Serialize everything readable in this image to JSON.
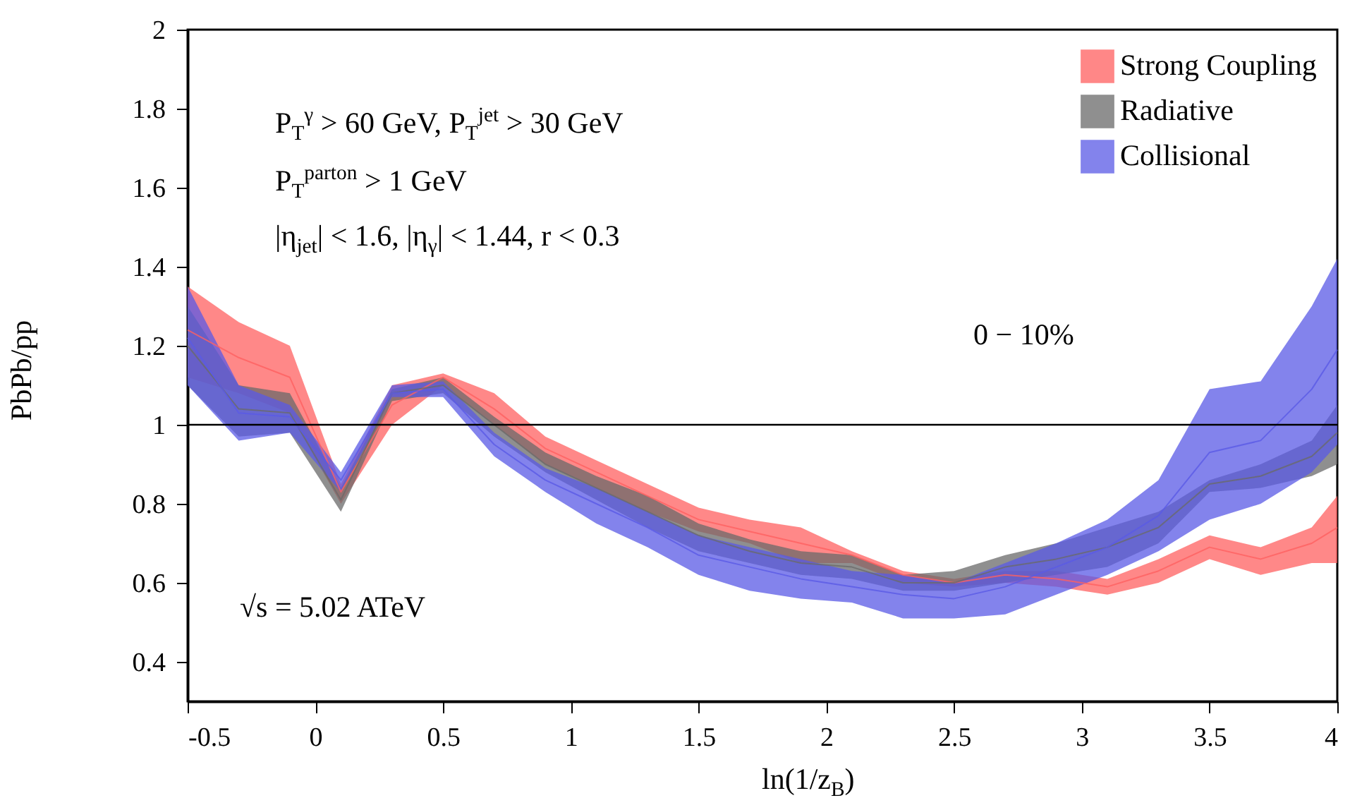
{
  "chart_data": {
    "type": "line",
    "xlabel": "ln(1/z$_{B}$)",
    "ylabel": "PbPb/pp",
    "x": [
      -0.5,
      -0.3,
      -0.1,
      0.1,
      0.3,
      0.5,
      0.7,
      0.9,
      1.1,
      1.3,
      1.5,
      1.7,
      1.9,
      2.1,
      2.3,
      2.5,
      2.7,
      2.9,
      3.1,
      3.3,
      3.5,
      3.7,
      3.9,
      4.0
    ],
    "series": [
      {
        "name": "Strong Coupling",
        "color": "#ff6060",
        "values": [
          1.24,
          1.17,
          1.12,
          0.83,
          1.05,
          1.12,
          1.04,
          0.94,
          0.88,
          0.82,
          0.76,
          0.73,
          0.7,
          0.67,
          0.62,
          0.6,
          0.62,
          0.61,
          0.59,
          0.63,
          0.69,
          0.66,
          0.7,
          0.74
        ],
        "lower": [
          1.12,
          1.08,
          1.03,
          0.8,
          1.0,
          1.1,
          1.0,
          0.9,
          0.84,
          0.78,
          0.73,
          0.7,
          0.65,
          0.65,
          0.6,
          0.59,
          0.6,
          0.59,
          0.57,
          0.6,
          0.66,
          0.62,
          0.65,
          0.65
        ],
        "upper": [
          1.35,
          1.26,
          1.2,
          0.85,
          1.1,
          1.13,
          1.08,
          0.97,
          0.91,
          0.85,
          0.79,
          0.76,
          0.74,
          0.68,
          0.63,
          0.61,
          0.63,
          0.63,
          0.61,
          0.66,
          0.72,
          0.69,
          0.74,
          0.82
        ]
      },
      {
        "name": "Radiative",
        "color": "#6a6a6a",
        "values": [
          1.2,
          1.04,
          1.03,
          0.81,
          1.08,
          1.1,
          1.0,
          0.9,
          0.84,
          0.78,
          0.72,
          0.68,
          0.65,
          0.64,
          0.6,
          0.6,
          0.64,
          0.66,
          0.69,
          0.74,
          0.85,
          0.87,
          0.92,
          0.98
        ],
        "lower": [
          1.1,
          0.97,
          0.98,
          0.78,
          1.06,
          1.08,
          0.97,
          0.88,
          0.81,
          0.74,
          0.68,
          0.65,
          0.62,
          0.61,
          0.58,
          0.58,
          0.6,
          0.62,
          0.64,
          0.7,
          0.83,
          0.84,
          0.87,
          0.9
        ],
        "upper": [
          1.3,
          1.1,
          1.08,
          0.84,
          1.09,
          1.12,
          1.02,
          0.93,
          0.87,
          0.82,
          0.75,
          0.71,
          0.68,
          0.67,
          0.62,
          0.63,
          0.67,
          0.7,
          0.74,
          0.78,
          0.86,
          0.9,
          0.96,
          1.05
        ]
      },
      {
        "name": "Collisional",
        "color": "#5a5ae6",
        "values": [
          1.22,
          1.03,
          1.02,
          0.86,
          1.08,
          1.09,
          0.95,
          0.86,
          0.8,
          0.74,
          0.67,
          0.64,
          0.61,
          0.59,
          0.57,
          0.56,
          0.59,
          0.64,
          0.69,
          0.77,
          0.93,
          0.96,
          1.09,
          1.19
        ],
        "lower": [
          1.1,
          0.96,
          0.98,
          0.83,
          1.07,
          1.07,
          0.92,
          0.83,
          0.75,
          0.69,
          0.62,
          0.58,
          0.56,
          0.55,
          0.51,
          0.51,
          0.52,
          0.57,
          0.62,
          0.68,
          0.76,
          0.8,
          0.88,
          0.95
        ],
        "upper": [
          1.35,
          1.1,
          1.05,
          0.88,
          1.1,
          1.11,
          0.98,
          0.89,
          0.84,
          0.78,
          0.72,
          0.69,
          0.66,
          0.63,
          0.62,
          0.6,
          0.65,
          0.7,
          0.76,
          0.86,
          1.09,
          1.11,
          1.3,
          1.42
        ]
      }
    ],
    "xlim": [
      -0.5,
      4
    ],
    "xticks": [
      -0.5,
      0,
      0.5,
      1,
      1.5,
      2,
      2.5,
      3,
      3.5,
      4
    ],
    "ylim": [
      0.3,
      2
    ],
    "yticks": [
      0.4,
      0.6,
      0.8,
      1,
      1.2,
      1.4,
      1.6,
      1.8,
      2
    ],
    "ref_lines": [
      {
        "axis": "y",
        "value": 1,
        "color": "#000000"
      }
    ],
    "legend": "top right",
    "grid": false,
    "annotations": [
      "P$_{T}$$^{γ}$ > 60 GeV, P$_{T}$$^{jet}$ > 30 GeV",
      "P$_{T}$$^{parton}$ > 1 GeV",
      "|η$_{jet}$| < 1.6, |η$_{γ}$| < 1.44, r < 0.3",
      "0 − 10%",
      "√s = 5.02 ATeV"
    ]
  }
}
